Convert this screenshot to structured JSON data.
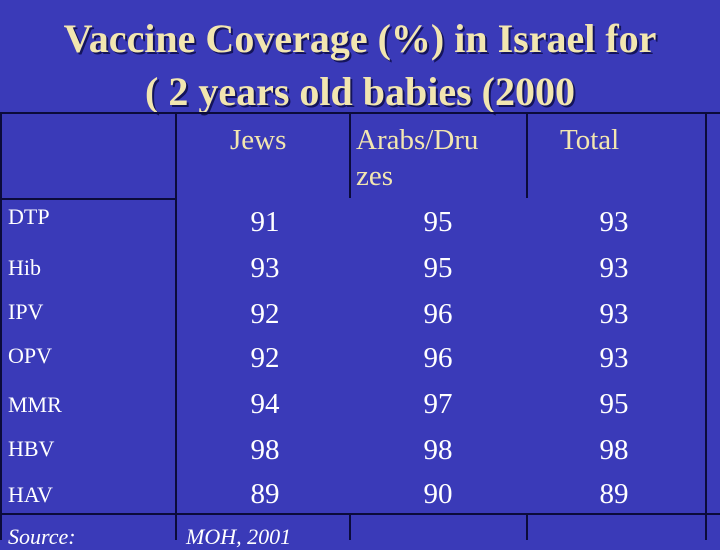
{
  "title": {
    "line1": "Vaccine Coverage (%) in Israel for",
    "line2": "( 2 years old babies (2000"
  },
  "table": {
    "headers": {
      "jews": "Jews",
      "arabs": "Arabs/Dru zes",
      "total": "Total"
    },
    "rows": [
      {
        "label": "DTP",
        "jews": "91",
        "arabs": "95",
        "total": "93"
      },
      {
        "label": "Hib",
        "jews": "93",
        "arabs": "95",
        "total": "93"
      },
      {
        "label": "IPV",
        "jews": "92",
        "arabs": "96",
        "total": "93"
      },
      {
        "label": "OPV",
        "jews": "92",
        "arabs": "96",
        "total": "93"
      },
      {
        "label": "MMR",
        "jews": "94",
        "arabs": "97",
        "total": "95"
      },
      {
        "label": "HBV",
        "jews": "98",
        "arabs": "98",
        "total": "98"
      },
      {
        "label": "HAV",
        "jews": "89",
        "arabs": "90",
        "total": "89"
      }
    ]
  },
  "footer": {
    "source_label": "Source:",
    "source_value": "MOH, 2001"
  }
}
